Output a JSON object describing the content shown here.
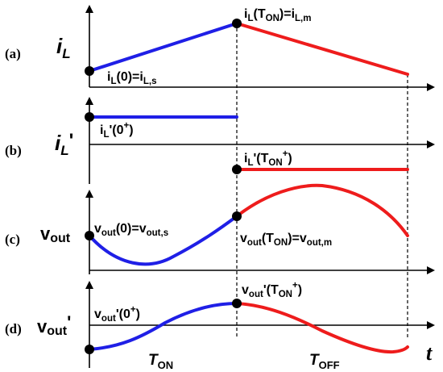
{
  "panels": {
    "a": {
      "tag": "(a)",
      "ylabel_base": "i",
      "ylabel_sub": "L",
      "label_start": {
        "parts": [
          {
            "t": "i",
            "s": "n"
          },
          {
            "t": "L",
            "s": "sub"
          },
          {
            "t": "(0)=i",
            "s": "n"
          },
          {
            "t": "L,s",
            "s": "sub"
          }
        ]
      },
      "label_peak": {
        "parts": [
          {
            "t": "i",
            "s": "n"
          },
          {
            "t": "L",
            "s": "sub"
          },
          {
            "t": "(T",
            "s": "n"
          },
          {
            "t": "ON",
            "s": "sub"
          },
          {
            "t": ")=i",
            "s": "n"
          },
          {
            "t": "L,m",
            "s": "sub"
          }
        ]
      }
    },
    "b": {
      "tag": "(b)",
      "ylabel_base": "i",
      "ylabel_sub": "L",
      "ylabel_prime": "'",
      "label_start": {
        "parts": [
          {
            "t": "i",
            "s": "n"
          },
          {
            "t": "L",
            "s": "sub"
          },
          {
            "t": "'(0",
            "s": "n"
          },
          {
            "t": "+",
            "s": "sup"
          },
          {
            "t": ")",
            "s": "n"
          }
        ]
      },
      "label_switch": {
        "parts": [
          {
            "t": "i",
            "s": "n"
          },
          {
            "t": "L",
            "s": "sub"
          },
          {
            "t": "'(T",
            "s": "n"
          },
          {
            "t": "ON",
            "s": "sub"
          },
          {
            "t": "+",
            "s": "sup"
          },
          {
            "t": ")",
            "s": "n"
          }
        ]
      }
    },
    "c": {
      "tag": "(c)",
      "ylabel_base": "v",
      "ylabel_sub": "out",
      "label_start": {
        "parts": [
          {
            "t": "v",
            "s": "n"
          },
          {
            "t": "out",
            "s": "sub"
          },
          {
            "t": "(0)=v",
            "s": "n"
          },
          {
            "t": "out,s",
            "s": "sub"
          }
        ]
      },
      "label_switch": {
        "parts": [
          {
            "t": "v",
            "s": "n"
          },
          {
            "t": "out",
            "s": "sub"
          },
          {
            "t": "(T",
            "s": "n"
          },
          {
            "t": "ON",
            "s": "sub"
          },
          {
            "t": ")=v",
            "s": "n"
          },
          {
            "t": "out,m",
            "s": "sub"
          }
        ]
      }
    },
    "d": {
      "tag": "(d)",
      "ylabel_base": "v",
      "ylabel_sub": "out",
      "ylabel_prime": "'",
      "label_start": {
        "parts": [
          {
            "t": "v",
            "s": "n"
          },
          {
            "t": "out",
            "s": "sub"
          },
          {
            "t": "'(0",
            "s": "n"
          },
          {
            "t": "+",
            "s": "sup"
          },
          {
            "t": ")",
            "s": "n"
          }
        ]
      },
      "label_switch": {
        "parts": [
          {
            "t": "v",
            "s": "n"
          },
          {
            "t": "out",
            "s": "sub"
          },
          {
            "t": "'(T",
            "s": "n"
          },
          {
            "t": "ON",
            "s": "sub"
          },
          {
            "t": "+",
            "s": "sup"
          },
          {
            "t": ")",
            "s": "n"
          }
        ]
      }
    }
  },
  "time_axis": {
    "t_label": "t",
    "ton_base": "T",
    "ton_sub": "ON",
    "toff_base": "T",
    "toff_sub": "OFF"
  },
  "colors": {
    "on_phase": "#1f1fe6",
    "off_phase": "#ee1c1c",
    "axes": "#000000"
  }
}
